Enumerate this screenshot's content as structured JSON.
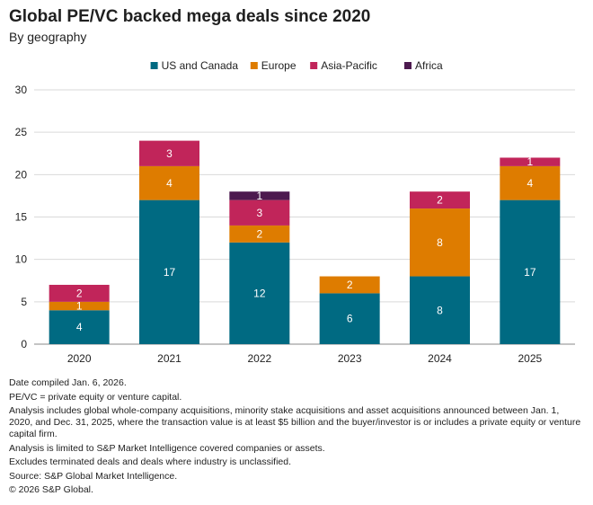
{
  "title": "Global PE/VC backed mega deals since 2020",
  "subtitle": "By geography",
  "chart_data": {
    "type": "bar",
    "stacked": true,
    "categories": [
      "2020",
      "2021",
      "2022",
      "2023",
      "2024",
      "2025"
    ],
    "series": [
      {
        "name": "US and Canada",
        "color": "#006a82",
        "values": [
          4,
          17,
          12,
          6,
          8,
          17
        ]
      },
      {
        "name": "Europe",
        "color": "#de7c00",
        "values": [
          1,
          4,
          2,
          2,
          8,
          4
        ]
      },
      {
        "name": "Asia-Pacific",
        "color": "#c1255a",
        "values": [
          2,
          3,
          3,
          0,
          2,
          1
        ]
      },
      {
        "name": "Africa",
        "color": "#4d1a4f",
        "values": [
          0,
          0,
          1,
          0,
          0,
          0
        ]
      }
    ],
    "ylim": [
      0,
      30
    ],
    "yticks": [
      0,
      5,
      10,
      15,
      20,
      25,
      30
    ],
    "grid": true,
    "legend": "top-center",
    "xlabel": "",
    "ylabel": ""
  },
  "notes": [
    "Date compiled Jan. 6, 2026.",
    "PE/VC = private equity or venture capital.",
    "Analysis includes global whole-company acquisitions, minority stake acquisitions and asset acquisitions announced between Jan. 1, 2020, and Dec. 31, 2025, where the transaction value is at least $5 billion and the buyer/investor is or includes a private equity or venture capital firm.",
    "Analysis is limited to S&P Market Intelligence covered companies or assets.",
    "Excludes terminated deals and deals where industry is unclassified.",
    "Source: S&P Global Market Intelligence.",
    "© 2026 S&P Global."
  ]
}
